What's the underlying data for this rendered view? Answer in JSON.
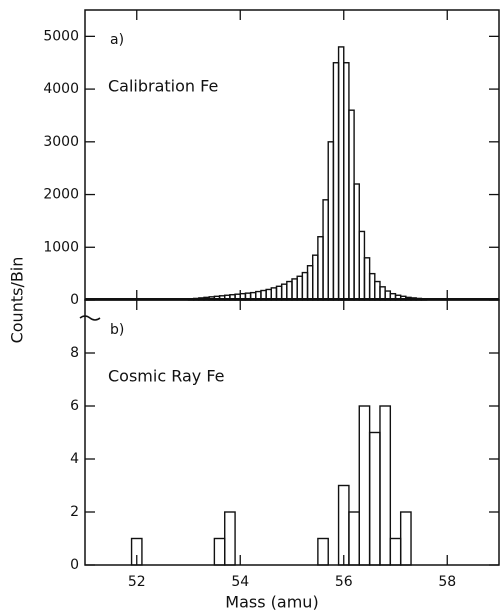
{
  "chart_data": [
    {
      "type": "histogram",
      "panel_label": "a)",
      "annotation": "Calibration Fe",
      "ylabel": "Counts/Bin",
      "bins": [
        53.0,
        53.1,
        53.2,
        53.3,
        53.4,
        53.5,
        53.6,
        53.7,
        53.8,
        53.9,
        54.0,
        54.1,
        54.2,
        54.3,
        54.4,
        54.5,
        54.6,
        54.7,
        54.8,
        54.9,
        55.0,
        55.1,
        55.2,
        55.3,
        55.4,
        55.5,
        55.6,
        55.7,
        55.8,
        55.9,
        56.0,
        56.1,
        56.2,
        56.3,
        56.4,
        56.5,
        56.6,
        56.7,
        56.8,
        56.9,
        57.0,
        57.1,
        57.2,
        57.3,
        57.4,
        57.5,
        57.6
      ],
      "values": [
        20,
        30,
        40,
        50,
        60,
        70,
        80,
        90,
        100,
        110,
        120,
        130,
        140,
        160,
        180,
        200,
        230,
        260,
        300,
        350,
        400,
        450,
        520,
        650,
        850,
        1200,
        1900,
        3000,
        4500,
        4800,
        4500,
        3600,
        2200,
        1300,
        800,
        500,
        350,
        250,
        170,
        120,
        90,
        70,
        50,
        40,
        30,
        20
      ],
      "color": "#111111",
      "xlim": [
        51,
        59
      ],
      "xticks": [
        52,
        54,
        56,
        58
      ],
      "ylim": [
        0,
        5500
      ],
      "yticks": [
        0,
        1000,
        2000,
        3000,
        4000,
        5000
      ]
    },
    {
      "type": "histogram",
      "panel_label": "b)",
      "annotation": "Cosmic Ray Fe",
      "xlabel": "Mass (amu)",
      "bins": [
        51.9,
        52.1,
        52.3,
        52.5,
        52.7,
        52.9,
        53.1,
        53.3,
        53.5,
        53.7,
        53.9,
        54.1,
        54.3,
        54.5,
        54.7,
        54.9,
        55.1,
        55.3,
        55.5,
        55.7,
        55.9,
        56.1,
        56.3,
        56.5,
        56.7,
        56.9,
        57.1,
        57.3
      ],
      "values": [
        1,
        0,
        0,
        0,
        0,
        0,
        0,
        0,
        1,
        2,
        0,
        0,
        0,
        0,
        0,
        0,
        0,
        0,
        1,
        0,
        3,
        2,
        6,
        5,
        6,
        1,
        2
      ],
      "color": "#111111",
      "xlim": [
        51,
        59
      ],
      "xticks": [
        52,
        54,
        56,
        58
      ],
      "ylim": [
        0,
        10
      ],
      "yticks": [
        0,
        2,
        4,
        6,
        8
      ]
    }
  ]
}
